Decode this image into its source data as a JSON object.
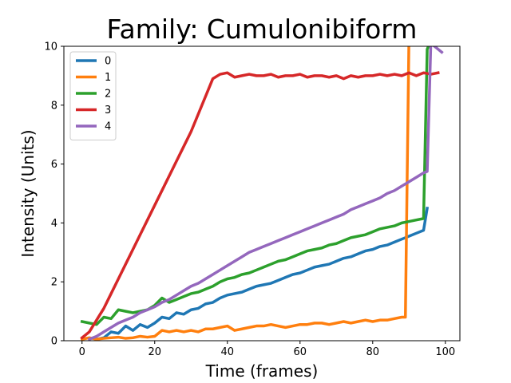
{
  "chart_data": {
    "type": "line",
    "title": "Family: Cumulonibiform",
    "xlabel": "Time (frames)",
    "ylabel": "Intensity (Units)",
    "xlim": [
      -5,
      104
    ],
    "ylim": [
      0,
      10
    ],
    "xticks": [
      0,
      20,
      40,
      60,
      80,
      100
    ],
    "yticks": [
      0,
      2,
      4,
      6,
      8,
      10
    ],
    "grid": false,
    "legend_position": "top-left",
    "series": [
      {
        "name": "0",
        "color": "#1f77b4",
        "x": [
          4,
          6,
          8,
          10,
          12,
          14,
          16,
          18,
          20,
          22,
          24,
          26,
          28,
          30,
          32,
          34,
          36,
          38,
          40,
          42,
          44,
          46,
          48,
          50,
          52,
          54,
          56,
          58,
          60,
          62,
          64,
          66,
          68,
          70,
          72,
          74,
          76,
          78,
          80,
          82,
          84,
          86,
          88,
          90,
          92,
          94,
          95
        ],
        "y": [
          0.05,
          0.1,
          0.3,
          0.25,
          0.5,
          0.35,
          0.55,
          0.45,
          0.6,
          0.8,
          0.75,
          0.95,
          0.9,
          1.05,
          1.1,
          1.25,
          1.3,
          1.45,
          1.55,
          1.6,
          1.65,
          1.75,
          1.85,
          1.9,
          1.95,
          2.05,
          2.15,
          2.25,
          2.3,
          2.4,
          2.5,
          2.55,
          2.6,
          2.7,
          2.8,
          2.85,
          2.95,
          3.05,
          3.1,
          3.2,
          3.25,
          3.35,
          3.45,
          3.55,
          3.65,
          3.75,
          4.5
        ]
      },
      {
        "name": "1",
        "color": "#ff7f0e",
        "x": [
          0,
          2,
          4,
          6,
          8,
          10,
          12,
          14,
          16,
          18,
          20,
          22,
          24,
          26,
          28,
          30,
          32,
          34,
          36,
          38,
          40,
          42,
          44,
          46,
          48,
          50,
          52,
          54,
          56,
          58,
          60,
          62,
          64,
          66,
          68,
          70,
          72,
          74,
          76,
          78,
          80,
          82,
          84,
          86,
          88,
          89,
          90
        ],
        "y": [
          0.05,
          0.1,
          0.05,
          0.08,
          0.1,
          0.12,
          0.08,
          0.1,
          0.15,
          0.12,
          0.15,
          0.35,
          0.3,
          0.35,
          0.3,
          0.35,
          0.3,
          0.4,
          0.4,
          0.45,
          0.5,
          0.35,
          0.4,
          0.45,
          0.5,
          0.5,
          0.55,
          0.5,
          0.45,
          0.5,
          0.55,
          0.55,
          0.6,
          0.6,
          0.55,
          0.6,
          0.65,
          0.6,
          0.65,
          0.7,
          0.65,
          0.7,
          0.7,
          0.75,
          0.8,
          0.8,
          10.5
        ]
      },
      {
        "name": "2",
        "color": "#2ca02c",
        "x": [
          0,
          2,
          4,
          6,
          8,
          10,
          12,
          14,
          16,
          18,
          20,
          22,
          24,
          26,
          28,
          30,
          32,
          34,
          36,
          38,
          40,
          42,
          44,
          46,
          48,
          50,
          52,
          54,
          56,
          58,
          60,
          62,
          64,
          66,
          68,
          70,
          72,
          74,
          76,
          78,
          80,
          82,
          84,
          86,
          88,
          90,
          92,
          94,
          95,
          96,
          98
        ],
        "y": [
          0.65,
          0.6,
          0.55,
          0.8,
          0.75,
          1.05,
          1.0,
          0.95,
          1.0,
          1.05,
          1.2,
          1.45,
          1.3,
          1.4,
          1.5,
          1.6,
          1.65,
          1.75,
          1.85,
          2.0,
          2.1,
          2.15,
          2.25,
          2.3,
          2.4,
          2.5,
          2.6,
          2.7,
          2.75,
          2.85,
          2.95,
          3.05,
          3.1,
          3.15,
          3.25,
          3.3,
          3.4,
          3.5,
          3.55,
          3.6,
          3.7,
          3.8,
          3.85,
          3.9,
          4.0,
          4.05,
          4.1,
          4.15,
          9.9,
          10.2,
          10.2
        ]
      },
      {
        "name": "3",
        "color": "#d62728",
        "x": [
          0,
          2,
          4,
          6,
          8,
          10,
          12,
          14,
          16,
          18,
          20,
          22,
          24,
          26,
          28,
          30,
          32,
          34,
          36,
          38,
          40,
          42,
          44,
          46,
          48,
          50,
          52,
          54,
          56,
          58,
          60,
          62,
          64,
          66,
          68,
          70,
          72,
          74,
          76,
          78,
          80,
          82,
          84,
          86,
          88,
          90,
          92,
          94,
          96,
          98
        ],
        "y": [
          0.1,
          0.3,
          0.7,
          1.1,
          1.6,
          2.1,
          2.6,
          3.1,
          3.6,
          4.1,
          4.6,
          5.1,
          5.6,
          6.1,
          6.6,
          7.1,
          7.7,
          8.3,
          8.9,
          9.05,
          9.1,
          8.95,
          9.0,
          9.05,
          9.0,
          9.0,
          9.05,
          8.95,
          9.0,
          9.0,
          9.05,
          8.95,
          9.0,
          9.0,
          8.95,
          9.0,
          8.9,
          9.0,
          8.95,
          9.0,
          9.0,
          9.05,
          9.0,
          9.05,
          9.0,
          9.1,
          9.0,
          9.1,
          9.05,
          9.1
        ]
      },
      {
        "name": "4",
        "color": "#9467bd",
        "x": [
          2,
          4,
          6,
          8,
          10,
          12,
          14,
          16,
          18,
          20,
          22,
          24,
          26,
          28,
          30,
          32,
          34,
          36,
          38,
          40,
          42,
          44,
          46,
          48,
          50,
          52,
          54,
          56,
          58,
          60,
          62,
          64,
          66,
          68,
          70,
          72,
          74,
          76,
          78,
          80,
          82,
          84,
          86,
          88,
          90,
          92,
          94,
          95,
          96,
          98,
          99
        ],
        "y": [
          0.05,
          0.15,
          0.3,
          0.45,
          0.6,
          0.7,
          0.8,
          0.95,
          1.05,
          1.15,
          1.3,
          1.4,
          1.55,
          1.7,
          1.85,
          1.95,
          2.1,
          2.25,
          2.4,
          2.55,
          2.7,
          2.85,
          3.0,
          3.1,
          3.2,
          3.3,
          3.4,
          3.5,
          3.6,
          3.7,
          3.8,
          3.9,
          4.0,
          4.1,
          4.2,
          4.3,
          4.45,
          4.55,
          4.65,
          4.75,
          4.85,
          5.0,
          5.1,
          5.25,
          5.4,
          5.55,
          5.7,
          5.75,
          10.1,
          9.9,
          9.8
        ]
      }
    ]
  }
}
